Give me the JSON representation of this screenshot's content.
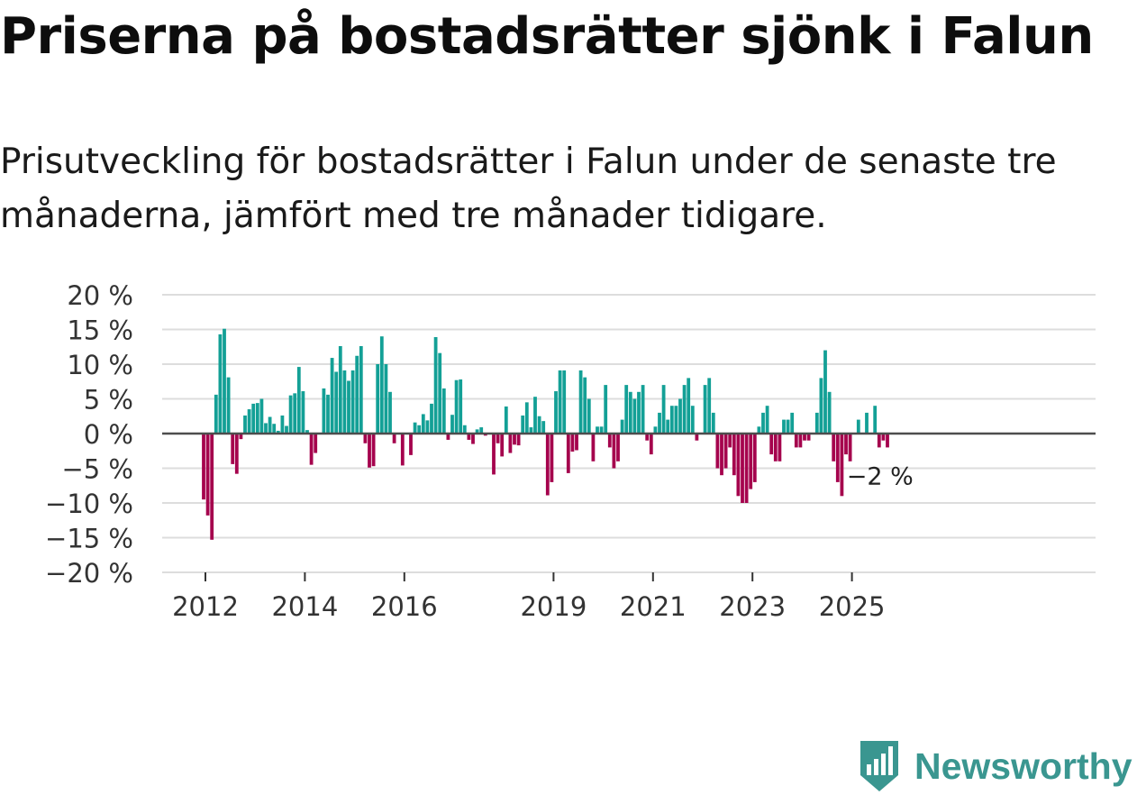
{
  "title": "Priserna på bostadsrätter sjönk i Falun",
  "subtitle": "Prisutveckling för bostadsrätter i Falun under de senaste tre månaderna, jämfört med tre månader tidigare.",
  "brand": {
    "name": "Newsworthy",
    "icon": "newsworthy-logo-icon",
    "color": "#3a9690"
  },
  "chart_data": {
    "type": "bar",
    "title": "Priserna på bostadsrätter sjönk i Falun",
    "xlabel": "",
    "ylabel": "",
    "ylim": [
      -20,
      20
    ],
    "y_ticks": [
      20,
      15,
      10,
      5,
      0,
      -5,
      -10,
      -15,
      -20
    ],
    "y_tick_labels": [
      "20 %",
      "15 %",
      "10 %",
      "5 %",
      "0 %",
      "−5 %",
      "−10 %",
      "−15 %",
      "−20 %"
    ],
    "x_tick_labels": [
      "2012",
      "2014",
      "2016",
      "2019",
      "2021",
      "2023",
      "2025"
    ],
    "x_tick_months": [
      0,
      24,
      48,
      84,
      108,
      132,
      156
    ],
    "start": "2012-01",
    "colors": {
      "positive": "#13a096",
      "negative": "#a5034d",
      "grid": "#dddddd",
      "zero": "#4d4d4d"
    },
    "annotation": {
      "label": "−2 %",
      "month_index": 163,
      "value": -2
    },
    "values": [
      -9.5,
      -11.8,
      -15.3,
      5.6,
      14.3,
      15.1,
      8.1,
      -4.4,
      -5.8,
      -0.8,
      2.6,
      3.5,
      4.3,
      4.4,
      5.0,
      1.5,
      2.4,
      1.4,
      0.4,
      2.6,
      1.1,
      5.5,
      5.8,
      9.6,
      6.1,
      0.5,
      -4.5,
      -2.8,
      0,
      6.5,
      5.6,
      10.9,
      8.9,
      12.6,
      9.1,
      7.6,
      9.1,
      11.2,
      12.6,
      -1.4,
      -4.9,
      -4.7,
      10.0,
      14.0,
      10.0,
      6.0,
      -1.4,
      0,
      -4.6,
      0,
      -3.1,
      1.6,
      1.2,
      2.8,
      1.9,
      4.3,
      13.9,
      11.6,
      6.5,
      -0.9,
      2.7,
      7.7,
      7.8,
      1.2,
      -0.9,
      -1.5,
      0.6,
      0.9,
      -0.3,
      0,
      -5.9,
      -1.4,
      -3.3,
      3.9,
      -2.8,
      -1.6,
      -1.7,
      2.6,
      4.5,
      0.9,
      5.3,
      2.5,
      1.8,
      -8.9,
      -7.0,
      6.1,
      9.1,
      9.1,
      -5.7,
      -2.6,
      -2.4,
      9.1,
      8.1,
      5.0,
      -4.0,
      1.0,
      1.0,
      7.0,
      -2.0,
      -5.0,
      -4.0,
      2.0,
      7.0,
      6.0,
      5.0,
      6.0,
      7.0,
      -1.0,
      -3.0,
      1.0,
      3.0,
      7.0,
      2.0,
      4.0,
      4.0,
      5.0,
      7.0,
      8.0,
      4.0,
      -1.0,
      0,
      7.0,
      8.0,
      3.0,
      -5.0,
      -6.0,
      -5.0,
      -2.0,
      -6.0,
      -9.0,
      -10.0,
      -10.0,
      -8.0,
      -7.0,
      1.0,
      3.0,
      4.0,
      -3.0,
      -4.0,
      -4.0,
      2.0,
      2.0,
      3.0,
      -2.0,
      -2.0,
      -1.0,
      -1.0,
      0,
      3.0,
      8.0,
      12.0,
      6.0,
      -4.0,
      -7.0,
      -9.0,
      -3.0,
      -4.0,
      0,
      2.0,
      0,
      3.0,
      0,
      4.0,
      -2.0,
      -1.0,
      -2.0
    ]
  }
}
